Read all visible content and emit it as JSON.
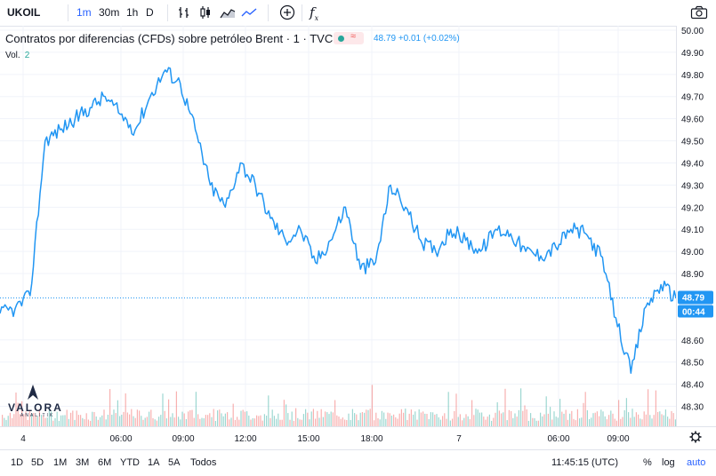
{
  "toolbar": {
    "symbol": "UKOIL",
    "intervals": [
      "1m",
      "30m",
      "1h",
      "D"
    ],
    "active_interval": "1m"
  },
  "legend": {
    "title": "Contratos por diferencias (CFDs) sobre petróleo Brent · 1 · TVC",
    "approx_symbol": "≈",
    "price": "48.79",
    "change": "+0.01 (+0.02%)"
  },
  "volume": {
    "label": "Vol.",
    "value": "2"
  },
  "price_axis": {
    "ticks": [
      "50.00",
      "49.90",
      "49.80",
      "49.70",
      "49.60",
      "49.50",
      "49.40",
      "49.30",
      "49.20",
      "49.10",
      "49.00",
      "48.90",
      "48.60",
      "48.50",
      "48.40",
      "48.30"
    ],
    "last_price_label": "48.79",
    "countdown_label": "00:44"
  },
  "time_axis": {
    "ticks": [
      "4",
      "06:00",
      "09:00",
      "12:00",
      "15:00",
      "18:00",
      "7",
      "06:00",
      "09:00"
    ]
  },
  "bottombar": {
    "ranges": [
      "1D",
      "5D",
      "1M",
      "3M",
      "6M",
      "YTD",
      "1A",
      "5A",
      "Todos"
    ],
    "clock": "11:45:15 (UTC)",
    "percent_label": "%",
    "log_label": "log",
    "auto_label": "auto"
  },
  "logo": {
    "name": "VALORA",
    "sub": "ANALITIK"
  },
  "colors": {
    "line": "#2196f3",
    "up": "#26a69a",
    "down": "#ef5350",
    "grid": "#f0f3fa"
  },
  "chart_data": {
    "type": "line",
    "title": "Contratos por diferencias (CFDs) sobre petróleo Brent · 1 · TVC",
    "x": [
      "4 00:00",
      "4 00:30",
      "4 01:00",
      "4 01:30",
      "4 02:00",
      "4 03:00",
      "4 04:00",
      "4 05:00",
      "4 06:00",
      "4 07:00",
      "4 08:00",
      "4 08:45",
      "4 09:00",
      "4 09:30",
      "4 10:00",
      "4 10:30",
      "4 11:00",
      "4 12:00",
      "4 13:00",
      "4 14:00",
      "4 14:30",
      "4 15:00",
      "4 16:00",
      "4 17:00",
      "4 17:30",
      "4 18:00",
      "4 19:00",
      "4 20:00",
      "4 21:00",
      "4 22:00",
      "4 23:00",
      "7 00:00",
      "7 01:00",
      "7 02:00",
      "7 03:00",
      "7 04:00",
      "7 05:00",
      "7 06:00",
      "7 06:45",
      "7 07:30",
      "7 08:00",
      "7 08:30",
      "7 09:00",
      "7 10:00",
      "7 11:00",
      "7 11:45"
    ],
    "series": [
      {
        "values": [
          48.72,
          48.74,
          48.8,
          49.5,
          49.55,
          49.6,
          49.65,
          49.7,
          49.62,
          49.55,
          49.7,
          49.82,
          49.76,
          49.55,
          49.3,
          49.2,
          49.4,
          49.3,
          49.15,
          49.05,
          49.1,
          48.95,
          49.05,
          49.2,
          48.92,
          48.95,
          49.3,
          49.2,
          49.05,
          49.0,
          49.1,
          49.05,
          49.0,
          49.1,
          49.08,
          49.0,
          48.98,
          49.02,
          49.1,
          49.08,
          48.98,
          48.7,
          48.45,
          48.75,
          48.85,
          48.79
        ]
      }
    ],
    "ylim": [
      48.25,
      50.0
    ],
    "y_ticks": [
      50.0,
      49.9,
      49.8,
      49.7,
      49.6,
      49.5,
      49.4,
      49.3,
      49.2,
      49.1,
      49.0,
      48.9,
      48.6,
      48.5,
      48.4,
      48.3
    ],
    "x_ticks": [
      "4",
      "06:00",
      "09:00",
      "12:00",
      "15:00",
      "18:00",
      "7",
      "06:00",
      "09:00"
    ],
    "grid": true,
    "last_value": 48.79
  }
}
